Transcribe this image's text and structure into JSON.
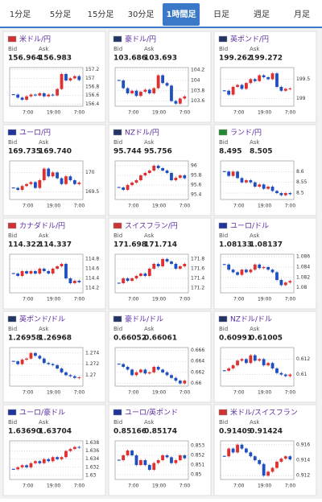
{
  "tabs": [
    "1分足",
    "5分足",
    "15分足",
    "30分足",
    "1時間足",
    "日足",
    "週足",
    "月足"
  ],
  "active_tab": 4,
  "labels": {
    "bid": "Bid",
    "ask": "Ask"
  },
  "x_labels": [
    "7:00",
    "19:00",
    "7:00"
  ],
  "cards": [
    {
      "name": "米ドル/円",
      "bid": "156.964",
      "ask": "156.983",
      "chart": {
        "ylim": [
          156.35,
          157.25
        ],
        "yticks": [
          157.2,
          157,
          156.8,
          156.6,
          156.4
        ],
        "values": [
          156.62,
          156.55,
          156.5,
          156.58,
          156.62,
          156.6,
          156.65,
          156.58,
          156.62,
          156.6,
          156.75,
          157.1,
          156.95,
          157.0,
          157.05,
          156.96
        ]
      }
    },
    {
      "name": "豪ドル/円",
      "bid": "103.686",
      "ask": "103.693",
      "chart": {
        "ylim": [
          103.5,
          104.25
        ],
        "yticks": [
          104.2,
          104,
          103.8,
          103.6
        ],
        "values": [
          104.0,
          103.85,
          103.75,
          103.8,
          103.7,
          103.78,
          103.82,
          103.75,
          103.85,
          104.1,
          103.95,
          103.9,
          103.6,
          103.55,
          103.65,
          103.69
        ]
      }
    },
    {
      "name": "英ポンド/円",
      "bid": "199.262",
      "ask": "199.272",
      "chart": {
        "ylim": [
          198.8,
          199.8
        ],
        "yticks": [
          199.5,
          199
        ],
        "values": [
          199.2,
          199.1,
          199.3,
          199.35,
          199.25,
          199.4,
          199.5,
          199.45,
          199.6,
          199.55,
          199.5,
          199.65,
          199.3,
          199.2,
          199.25,
          199.26
        ]
      }
    },
    {
      "name": "ユーロ/円",
      "bid": "169.735",
      "ask": "169.740",
      "chart": {
        "ylim": [
          169.3,
          170.3
        ],
        "yticks": [
          170,
          169.5
        ],
        "values": [
          169.6,
          169.55,
          169.65,
          169.7,
          169.75,
          169.6,
          169.8,
          170.1,
          169.9,
          170.0,
          169.85,
          169.7,
          169.9,
          169.8,
          169.7,
          169.74
        ]
      }
    },
    {
      "name": "NZドル/円",
      "bid": "95.744",
      "ask": "95.756",
      "chart": {
        "ylim": [
          95.3,
          96.1
        ],
        "yticks": [
          96,
          95.8,
          95.6,
          95.4
        ],
        "values": [
          95.55,
          95.5,
          95.6,
          95.65,
          95.7,
          95.8,
          95.85,
          95.9,
          96.0,
          95.95,
          95.9,
          95.85,
          95.7,
          95.75,
          95.8,
          95.74
        ]
      }
    },
    {
      "name": "ランド/円",
      "bid": "8.495",
      "ask": "8.505",
      "chart": {
        "ylim": [
          8.47,
          8.65
        ],
        "yticks": [
          8.6,
          8.55,
          8.5
        ],
        "values": [
          8.6,
          8.58,
          8.6,
          8.57,
          8.55,
          8.56,
          8.55,
          8.53,
          8.54,
          8.52,
          8.53,
          8.51,
          8.5,
          8.49,
          8.5,
          8.495
        ]
      }
    },
    {
      "name": "カナダドル/円",
      "bid": "114.322",
      "ask": "114.337",
      "chart": {
        "ylim": [
          114.1,
          114.9
        ],
        "yticks": [
          114.8,
          114.6,
          114.4,
          114.2
        ],
        "values": [
          114.5,
          114.45,
          114.55,
          114.5,
          114.55,
          114.5,
          114.6,
          114.55,
          114.5,
          114.6,
          114.65,
          114.7,
          114.4,
          114.3,
          114.35,
          114.32
        ]
      }
    },
    {
      "name": "スイスフラン/円",
      "bid": "171.698",
      "ask": "171.714",
      "chart": {
        "ylim": [
          171.1,
          171.9
        ],
        "yticks": [
          171.8,
          171.6,
          171.4,
          171.2
        ],
        "values": [
          171.3,
          171.4,
          171.35,
          171.4,
          171.45,
          171.5,
          171.45,
          171.6,
          171.7,
          171.65,
          171.8,
          171.75,
          171.7,
          171.6,
          171.65,
          171.7
        ]
      }
    },
    {
      "name": "ユーロ/ドル",
      "bid": "1.08133",
      "ask": "1.08137",
      "chart": {
        "ylim": [
          1.079,
          1.0865
        ],
        "yticks": [
          1.086,
          1.084,
          1.082,
          1.08
        ],
        "values": [
          1.0845,
          1.0835,
          1.083,
          1.0825,
          1.0835,
          1.083,
          1.0835,
          1.0845,
          1.0838,
          1.084,
          1.0835,
          1.083,
          1.0815,
          1.0805,
          1.081,
          1.0813
        ]
      }
    },
    {
      "name": "英ポンド/ドル",
      "bid": "1.26958",
      "ask": "1.26968",
      "chart": {
        "ylim": [
          1.268,
          1.275
        ],
        "yticks": [
          1.274,
          1.272,
          1.27
        ],
        "values": [
          1.2725,
          1.272,
          1.2728,
          1.273,
          1.274,
          1.2735,
          1.273,
          1.2722,
          1.272,
          1.2718,
          1.2712,
          1.2705,
          1.27,
          1.2698,
          1.2695,
          1.2696
        ]
      }
    },
    {
      "name": "豪ドル/ドル",
      "bid": "0.66052",
      "ask": "0.66061",
      "chart": {
        "ylim": [
          0.6595,
          0.6665
        ],
        "yticks": [
          0.666,
          0.664,
          0.662,
          0.66
        ],
        "values": [
          0.6635,
          0.663,
          0.6625,
          0.6615,
          0.662,
          0.6625,
          0.6618,
          0.662,
          0.663,
          0.6625,
          0.662,
          0.6615,
          0.661,
          0.6605,
          0.66,
          0.6605
        ]
      }
    },
    {
      "name": "NZドル/ドル",
      "bid": "0.60991",
      "ask": "0.61005",
      "chart": {
        "ylim": [
          0.6085,
          0.6135
        ],
        "yticks": [
          0.612,
          0.61
        ],
        "values": [
          0.6105,
          0.6108,
          0.6112,
          0.6118,
          0.612,
          0.6115,
          0.6125,
          0.6118,
          0.612,
          0.6112,
          0.6115,
          0.6108,
          0.6102,
          0.61,
          0.6098,
          0.61
        ]
      }
    },
    {
      "name": "ユーロ/豪ドル",
      "bid": "1.63690",
      "ask": "1.63704",
      "chart": {
        "ylim": [
          1.629,
          1.6385
        ],
        "yticks": [
          1.638,
          1.636,
          1.634,
          1.632,
          1.63
        ],
        "values": [
          1.6315,
          1.632,
          1.6325,
          1.632,
          1.633,
          1.6335,
          1.633,
          1.634,
          1.6335,
          1.6345,
          1.634,
          1.6345,
          1.636,
          1.6365,
          1.637,
          1.6369
        ]
      }
    },
    {
      "name": "ユーロ/英ポンド",
      "bid": "0.85166",
      "ask": "0.85174",
      "chart": {
        "ylim": [
          0.8495,
          0.8535
        ],
        "yticks": [
          0.853,
          0.852,
          0.851,
          0.85
        ],
        "values": [
          0.8515,
          0.852,
          0.8525,
          0.852,
          0.851,
          0.8515,
          0.851,
          0.8505,
          0.8512,
          0.8515,
          0.852,
          0.8518,
          0.8512,
          0.8515,
          0.852,
          0.8517
        ]
      }
    },
    {
      "name": "米ドル/スイスフラン",
      "bid": "0.91409",
      "ask": "0.91424",
      "chart": {
        "ylim": [
          0.9115,
          0.9165
        ],
        "yticks": [
          0.916,
          0.914,
          0.912
        ],
        "values": [
          0.9145,
          0.9155,
          0.915,
          0.916,
          0.9155,
          0.915,
          0.9145,
          0.914,
          0.9135,
          0.912,
          0.9125,
          0.913,
          0.9138,
          0.9142,
          0.9145,
          0.9141
        ]
      }
    }
  ]
}
